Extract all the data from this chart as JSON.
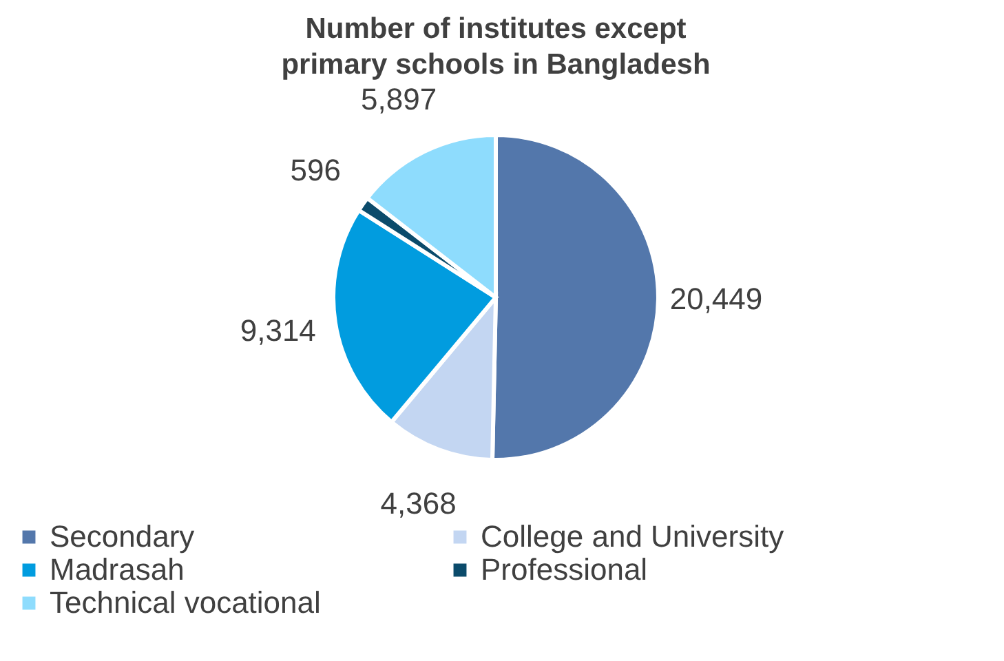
{
  "chart_data": {
    "type": "pie",
    "title": "Number of institutes except primary schools in Bangladesh",
    "categories": [
      "Secondary",
      "College and University",
      "Madrasah",
      "Professional",
      "Technical vocational"
    ],
    "values": [
      20449,
      4368,
      9314,
      596,
      5897
    ],
    "colors": [
      "#5377ab",
      "#c3d6f2",
      "#019cdf",
      "#0b4b6b",
      "#8edcfd"
    ],
    "value_labels": [
      "20,449",
      "4,368",
      "9,314",
      "596",
      "5,897"
    ],
    "legend": "bottom"
  }
}
